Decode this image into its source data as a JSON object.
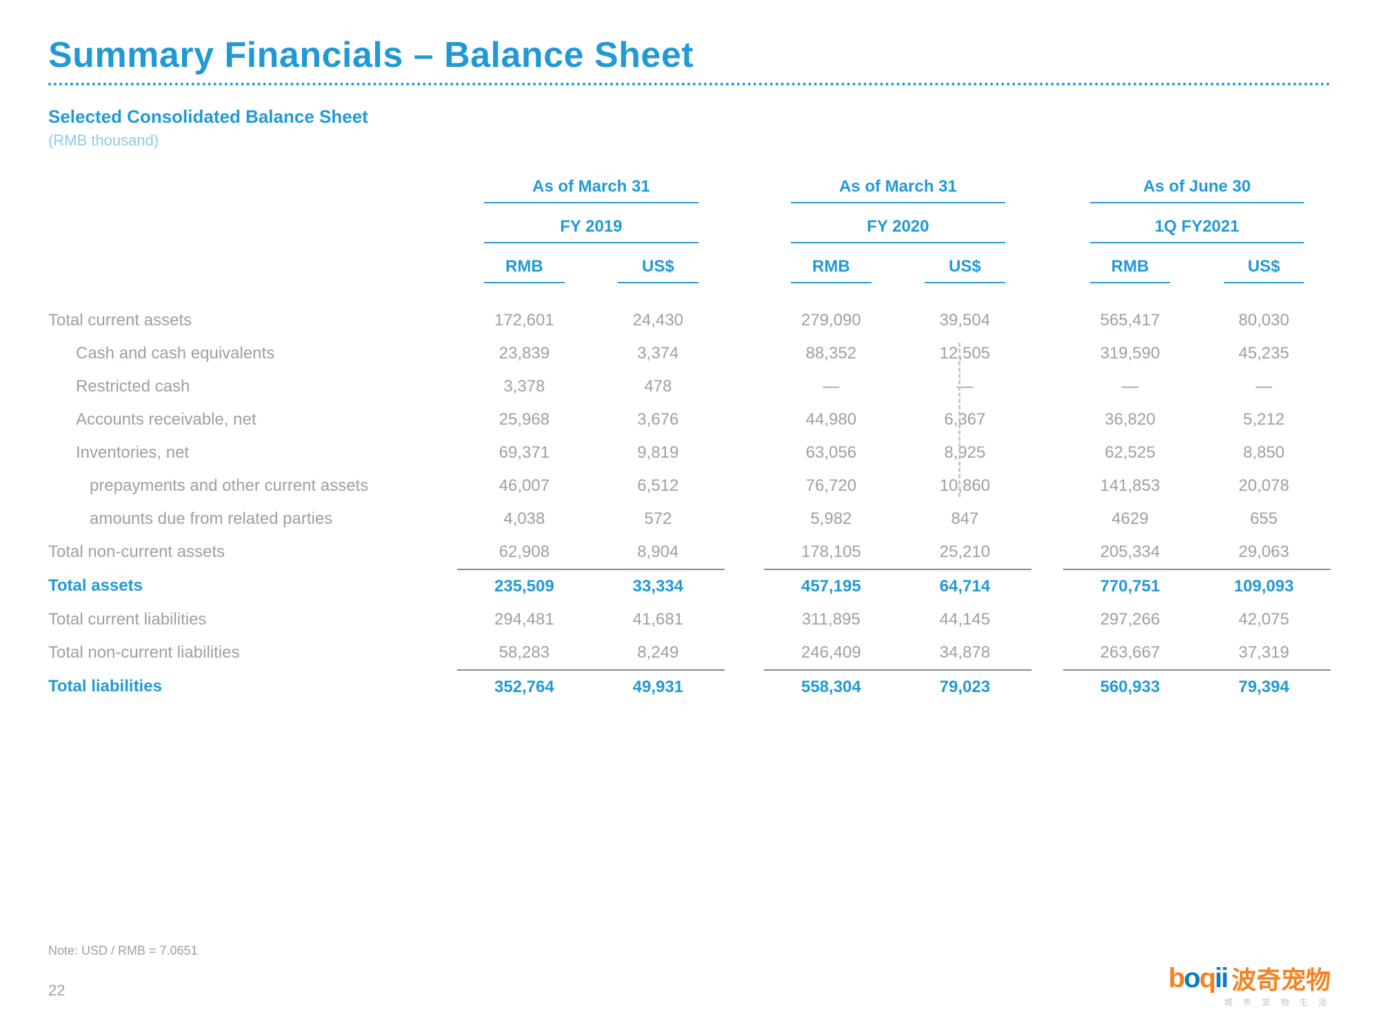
{
  "title": "Summary Financials – Balance Sheet",
  "subtitle": "Selected Consolidated Balance Sheet",
  "unit": "(RMB thousand)",
  "note": "Note: USD / RMB = 7.0651",
  "page": "22",
  "logo_text": "波奇宠物",
  "logo_sub": "城 市 宠 物 生 活",
  "colors": {
    "accent": "#2199d6",
    "muted": "#9aa0a6",
    "brand_orange": "#f58220",
    "brand_blue": "#0b7bbf"
  },
  "periods": [
    {
      "asof": "As of March 31",
      "fy": "FY 2019"
    },
    {
      "asof": "As of March 31",
      "fy": "FY 2020"
    },
    {
      "asof": "As of June 30",
      "fy": "1Q FY2021"
    }
  ],
  "currency_headers": [
    "RMB",
    "US$"
  ],
  "rows": [
    {
      "label": "Total current assets",
      "indent": 0,
      "strong": false,
      "rule": false,
      "vals": [
        "172,601",
        "24,430",
        "279,090",
        "39,504",
        "565,417",
        "80,030"
      ]
    },
    {
      "label": "Cash and cash equivalents",
      "indent": 1,
      "strong": false,
      "rule": false,
      "vals": [
        "23,839",
        "3,374",
        "88,352",
        "12,505",
        "319,590",
        "45,235"
      ]
    },
    {
      "label": "Restricted cash",
      "indent": 1,
      "strong": false,
      "rule": false,
      "vals": [
        "3,378",
        "478",
        "—",
        "—",
        "—",
        "—"
      ]
    },
    {
      "label": "Accounts receivable, net",
      "indent": 1,
      "strong": false,
      "rule": false,
      "vals": [
        "25,968",
        "3,676",
        "44,980",
        "6,367",
        "36,820",
        "5,212"
      ]
    },
    {
      "label": "Inventories, net",
      "indent": 1,
      "strong": false,
      "rule": false,
      "vals": [
        "69,371",
        "9,819",
        "63,056",
        "8,925",
        "62,525",
        "8,850"
      ]
    },
    {
      "label": "prepayments and other current assets",
      "indent": 2,
      "strong": false,
      "rule": false,
      "vals": [
        "46,007",
        "6,512",
        "76,720",
        "10,860",
        "141,853",
        "20,078"
      ]
    },
    {
      "label": "amounts due from related parties",
      "indent": 2,
      "strong": false,
      "rule": false,
      "vals": [
        "4,038",
        "572",
        "5,982",
        "847",
        "4629",
        "655"
      ]
    },
    {
      "label": "Total non-current assets",
      "indent": 0,
      "strong": false,
      "rule": false,
      "vals": [
        "62,908",
        "8,904",
        "178,105",
        "25,210",
        "205,334",
        "29,063"
      ]
    },
    {
      "label": "Total assets",
      "indent": 0,
      "strong": true,
      "rule": true,
      "vals": [
        "235,509",
        "33,334",
        "457,195",
        "64,714",
        "770,751",
        "109,093"
      ]
    },
    {
      "label": "Total current liabilities",
      "indent": 0,
      "strong": false,
      "rule": false,
      "vals": [
        "294,481",
        "41,681",
        "311,895",
        "44,145",
        "297,266",
        "42,075"
      ]
    },
    {
      "label": "Total non-current liabilities",
      "indent": 0,
      "strong": false,
      "rule": false,
      "vals": [
        "58,283",
        "8,249",
        "246,409",
        "34,878",
        "263,667",
        "37,319"
      ]
    },
    {
      "label": "Total liabilities",
      "indent": 0,
      "strong": true,
      "rule": true,
      "vals": [
        "352,764",
        "49,931",
        "558,304",
        "79,023",
        "560,933",
        "79,394"
      ]
    }
  ]
}
